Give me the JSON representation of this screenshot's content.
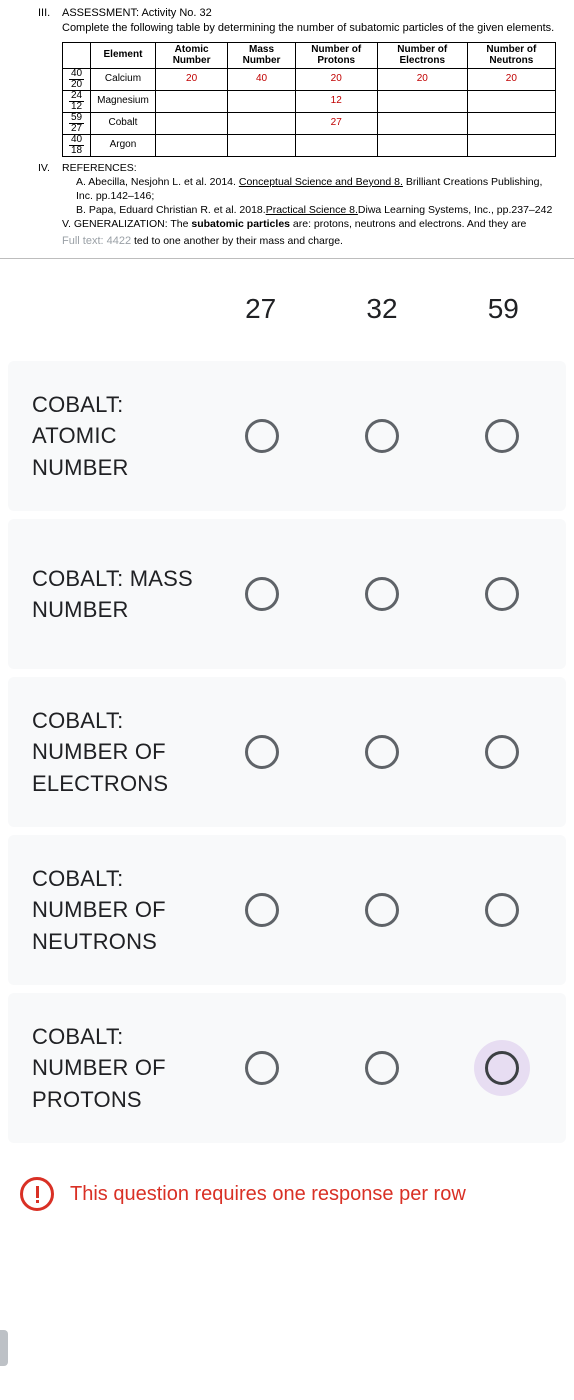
{
  "worksheet": {
    "section_num": "III.",
    "title": "ASSESSMENT:  Activity No. 32",
    "subtitle": "Complete the following table by determining the number of subatomic particles of the given elements.",
    "table": {
      "headers": [
        "",
        "Element",
        "Atomic Number",
        "Mass Number",
        "Number of Protons",
        "Number of Electrons",
        "Number of Neutrons"
      ],
      "rows": [
        {
          "frac_top": "40",
          "frac_bot": "20",
          "element": "Calcium",
          "atomic": "20",
          "mass": "40",
          "protons": "20",
          "electrons": "20",
          "neutrons": "20",
          "red": true
        },
        {
          "frac_top": "24",
          "frac_bot": "12",
          "element": "Magnesium",
          "atomic": "",
          "mass": "",
          "protons": "12",
          "electrons": "",
          "neutrons": "",
          "red": true
        },
        {
          "frac_top": "59",
          "frac_bot": "27",
          "element": "Cobalt",
          "atomic": "",
          "mass": "",
          "protons": "27",
          "electrons": "",
          "neutrons": "",
          "red": true
        },
        {
          "frac_top": "40",
          "frac_bot": "18",
          "element": "Argon",
          "atomic": "",
          "mass": "",
          "protons": "",
          "electrons": "",
          "neutrons": "",
          "red": false
        }
      ]
    },
    "refs_num": "IV.",
    "refs_label": "REFERENCES:",
    "ref_a_pre": "A.   Abecilla, Nesjohn L. et al. 2014. ",
    "ref_a_u": "Conceptual Science and Beyond 8.",
    "ref_a_post": " Brilliant Creations Publishing, Inc.  pp.142–146;",
    "ref_b_pre": "B.   Papa, Eduard Christian R. et al. 2018.",
    "ref_b_u": "Practical Science 8.",
    "ref_b_post": "Diwa Learning Systems, Inc., pp.237–242",
    "gen_label": "V. GENERALIZATION:",
    "gen_text_pre": "      The ",
    "gen_text_bold": "subatomic particles",
    "gen_text_post": " are: protons, neutrons and electrons. And they are",
    "full_text_label": "Full text: 4422",
    "trail": " ted to one another by their mass and charge."
  },
  "quiz": {
    "columns": [
      "27",
      "32",
      "59"
    ],
    "rows": [
      {
        "label": "COBALT: ATOMIC NUMBER",
        "active": null
      },
      {
        "label": "COBALT: MASS NUMBER",
        "active": null
      },
      {
        "label": "COBALT: NUMBER OF ELECTRONS",
        "active": null
      },
      {
        "label": "COBALT: NUMBER OF NEUTRONS",
        "active": null
      },
      {
        "label": "COBALT: NUMBER OF PROTONS",
        "active": 2
      }
    ],
    "warning": "This question requires one response per row"
  },
  "colors": {
    "row_bg": "#f8f9fa",
    "radio_border": "#5f6368",
    "active_halo": "#e7ddf2",
    "warning": "#d93025",
    "text": "#202124"
  }
}
